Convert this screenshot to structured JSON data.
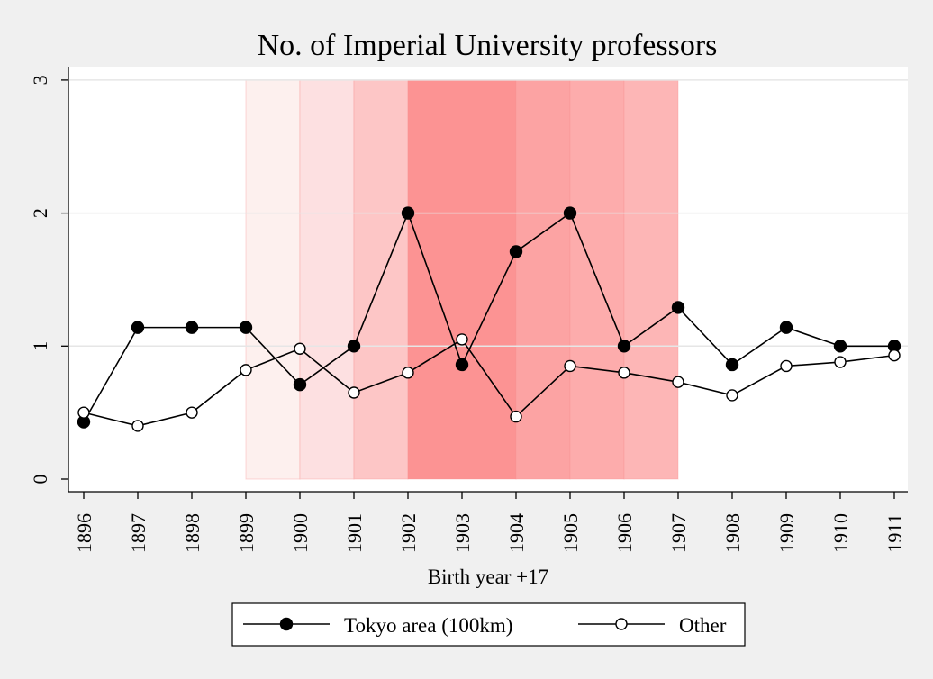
{
  "chart_data": {
    "type": "line",
    "title": "No. of Imperial University professors",
    "xlabel": "Birth year +17",
    "ylabel": "",
    "x": [
      1896,
      1897,
      1898,
      1899,
      1900,
      1901,
      1902,
      1903,
      1904,
      1905,
      1906,
      1907,
      1908,
      1909,
      1910,
      1911
    ],
    "x_ticks": [
      "1896",
      "1897",
      "1898",
      "1899",
      "1900",
      "1901",
      "1902",
      "1903",
      "1904",
      "1905",
      "1906",
      "1907",
      "1908",
      "1909",
      "1910",
      "1911"
    ],
    "ylim": [
      0,
      3
    ],
    "y_ticks": [
      "0",
      "1",
      "2",
      "3"
    ],
    "grid": true,
    "legend_position": "bottom",
    "series": [
      {
        "name": "Tokyo area (100km)",
        "marker": "filled-circle",
        "color": "#000000",
        "values": [
          0.43,
          1.14,
          1.14,
          1.14,
          0.71,
          1.0,
          2.0,
          0.86,
          1.71,
          2.0,
          1.0,
          1.29,
          0.86,
          1.14,
          1.0,
          1.0
        ]
      },
      {
        "name": "Other",
        "marker": "hollow-circle",
        "color": "#000000",
        "values": [
          0.5,
          0.4,
          0.5,
          0.82,
          0.98,
          0.65,
          0.8,
          1.05,
          0.47,
          0.85,
          0.8,
          0.73,
          0.63,
          0.85,
          0.88,
          0.93
        ]
      }
    ],
    "shaded_bands": [
      {
        "from": 1899,
        "to": 1900,
        "color": "#fdf0ee"
      },
      {
        "from": 1900,
        "to": 1901,
        "color": "#fde0e1"
      },
      {
        "from": 1901,
        "to": 1902,
        "color": "#fdc6c6"
      },
      {
        "from": 1902,
        "to": 1904,
        "color": "#fc9393"
      },
      {
        "from": 1904,
        "to": 1905,
        "color": "#fca3a3"
      },
      {
        "from": 1905,
        "to": 1906,
        "color": "#fdacac"
      },
      {
        "from": 1906,
        "to": 1907,
        "color": "#fdb6b6"
      }
    ],
    "colors": {
      "page_background": "#f0f0f0",
      "plot_background": "#ffffff",
      "gridline": "#e6e6e6",
      "band_edge": "#f58e8e"
    }
  }
}
